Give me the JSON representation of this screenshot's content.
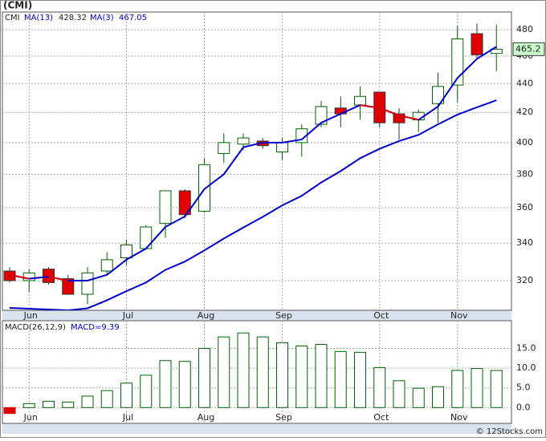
{
  "chart_data": [
    {
      "type": "candlestick",
      "title": "(CMI)",
      "symbol": "CMI",
      "categories": [
        null,
        "Jun",
        null,
        null,
        null,
        null,
        "Jul",
        null,
        null,
        null,
        "Aug",
        null,
        null,
        null,
        "Sep",
        null,
        null,
        null,
        null,
        "Oct",
        null,
        null,
        null,
        "Nov",
        null,
        null
      ],
      "open": [
        325,
        320,
        326,
        321,
        313,
        325,
        332,
        337,
        351,
        370,
        358,
        393,
        399,
        401,
        394,
        400,
        412,
        423,
        425,
        434,
        419,
        415,
        426,
        439,
        477,
        462
      ],
      "high": [
        327,
        326,
        327,
        323,
        327,
        335,
        342,
        350,
        370,
        371,
        390,
        406,
        406,
        403,
        403,
        412,
        428,
        431,
        438,
        434,
        423,
        422,
        448,
        483,
        485,
        484
      ],
      "low": [
        319,
        314,
        318,
        313,
        308,
        323,
        328,
        337,
        343,
        354,
        357,
        387,
        395,
        396,
        389,
        391,
        410,
        410,
        415,
        410,
        402,
        407,
        413,
        427,
        458,
        449
      ],
      "close": [
        320,
        324,
        319,
        313,
        324,
        331,
        339,
        349,
        370,
        356,
        386,
        400,
        403,
        398,
        400,
        409,
        424,
        419,
        431,
        413,
        413,
        420,
        438,
        473,
        461,
        465.2
      ],
      "series": [
        {
          "name": "MA(13)",
          "color": "#0000cc",
          "values": [
            306.2,
            305.8,
            305.4,
            305,
            306,
            310,
            314.6,
            319,
            325.6,
            330,
            336,
            342.5,
            348.7,
            354.7,
            361.4,
            367,
            375,
            382,
            390,
            396,
            401,
            405,
            412,
            418.5,
            423.5,
            428.32
          ]
        },
        {
          "name": "MA(3)",
          "color": "#0000cc",
          "down_color": "#e00000",
          "values": [
            323,
            321,
            322,
            320,
            320,
            323,
            331,
            337,
            349,
            355,
            371,
            380,
            397,
            400,
            400,
            402,
            413,
            419,
            425,
            423,
            418,
            415,
            424,
            444,
            458,
            467.05
          ]
        }
      ],
      "up_color": "#006400",
      "down_color": "#e00000",
      "ylim": [
        305,
        494
      ],
      "yticks": [
        320,
        340,
        360,
        380,
        400,
        420,
        440,
        460,
        480
      ],
      "log_scale": true,
      "grid": true
    },
    {
      "type": "bar",
      "title": "MACD(26,12,9)",
      "legend_text": "MACD=9.39",
      "categories": [
        null,
        "Jun",
        null,
        null,
        null,
        null,
        "Jul",
        null,
        null,
        null,
        "Aug",
        null,
        null,
        null,
        "Sep",
        null,
        null,
        null,
        null,
        "Oct",
        null,
        null,
        null,
        "Nov",
        null,
        null
      ],
      "values": [
        -1.5,
        1.0,
        1.6,
        1.4,
        2.9,
        4.3,
        6.2,
        8.2,
        11.9,
        11.7,
        15.0,
        17.9,
        18.9,
        17.9,
        16.4,
        15.6,
        16.0,
        14.2,
        14.0,
        10.1,
        6.8,
        4.9,
        5.3,
        9.4,
        9.9,
        9.39
      ],
      "color": "#006400",
      "negative_color": "#e00000",
      "ylim": [
        -4,
        22
      ],
      "yticks": [
        {
          "value": 0,
          "label": "0.0"
        },
        {
          "value": 5,
          "label": "5.0"
        },
        {
          "value": 10,
          "label": "10.0"
        },
        {
          "value": 15,
          "label": "15.0"
        }
      ],
      "grid": true
    }
  ],
  "watermark": "© 12Stocks.com"
}
